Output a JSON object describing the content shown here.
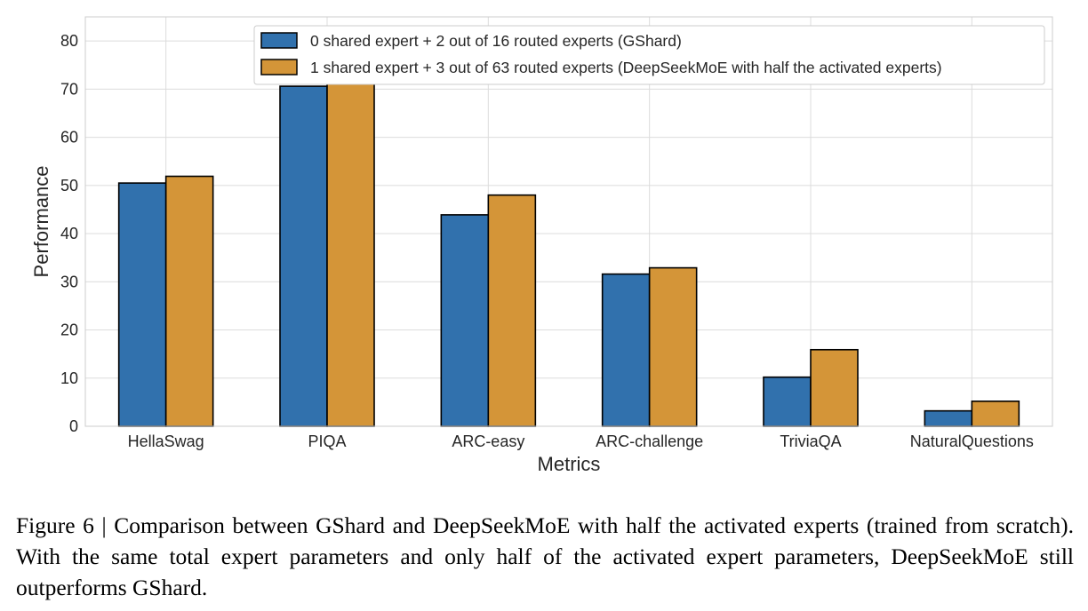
{
  "chart_data": {
    "type": "bar",
    "xlabel": "Metrics",
    "ylabel": "Performance",
    "ylim": [
      0,
      85
    ],
    "yticks": [
      0,
      10,
      20,
      30,
      40,
      50,
      60,
      70,
      80
    ],
    "grid": true,
    "legend_position": "top-center",
    "categories": [
      "HellaSwag",
      "PIQA",
      "ARC-easy",
      "ARC-challenge",
      "TriviaQA",
      "NaturalQuestions"
    ],
    "series": [
      {
        "name": "0 shared expert + 2 out of 16 routed experts (GShard)",
        "color": "#3171ad",
        "values": [
          50.5,
          70.6,
          43.9,
          31.6,
          10.2,
          3.2
        ]
      },
      {
        "name": "1 shared expert + 3 out of 63 routed experts (DeepSeekMoE with half the activated experts)",
        "color": "#d49538",
        "values": [
          51.9,
          71.4,
          48.0,
          32.9,
          15.9,
          5.2
        ]
      }
    ]
  },
  "caption": {
    "text": "Figure 6 | Comparison between GShard and DeepSeekMoE with half the activated experts (trained from scratch). With the same total expert parameters and only half of the activated expert parameters, DeepSeekMoE still outperforms GShard."
  }
}
